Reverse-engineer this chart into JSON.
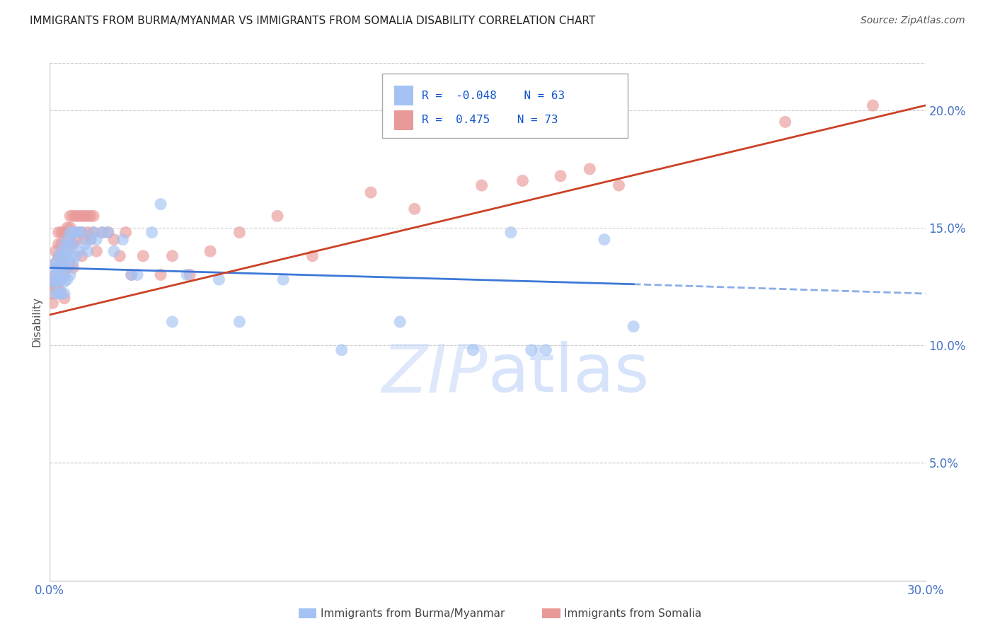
{
  "title": "IMMIGRANTS FROM BURMA/MYANMAR VS IMMIGRANTS FROM SOMALIA DISABILITY CORRELATION CHART",
  "source": "Source: ZipAtlas.com",
  "ylabel": "Disability",
  "xlim": [
    0.0,
    0.3
  ],
  "ylim": [
    0.0,
    0.22
  ],
  "yticks": [
    0.05,
    0.1,
    0.15,
    0.2
  ],
  "ytick_labels": [
    "5.0%",
    "10.0%",
    "15.0%",
    "20.0%"
  ],
  "xticks": [
    0.0,
    0.05,
    0.1,
    0.15,
    0.2,
    0.25,
    0.3
  ],
  "xtick_labels": [
    "0.0%",
    "",
    "",
    "",
    "",
    "",
    "30.0%"
  ],
  "blue_color": "#a4c2f4",
  "pink_color": "#ea9999",
  "blue_line_color": "#3c78d8",
  "pink_line_color": "#cc4125",
  "blue_R": -0.048,
  "blue_N": 63,
  "pink_R": 0.475,
  "pink_N": 73,
  "legend_blue_label": "Immigrants from Burma/Myanmar",
  "legend_pink_label": "Immigrants from Somalia",
  "watermark_zip": "ZIP",
  "watermark_atlas": "atlas",
  "background_color": "#ffffff",
  "blue_line_x0": 0.0,
  "blue_line_y0": 0.133,
  "blue_line_x1": 0.2,
  "blue_line_y1": 0.126,
  "blue_line_dash_x1": 0.3,
  "blue_line_dash_y1": 0.122,
  "pink_line_x0": 0.0,
  "pink_line_y0": 0.113,
  "pink_line_x1": 0.3,
  "pink_line_y1": 0.202,
  "blue_x": [
    0.001,
    0.001,
    0.002,
    0.002,
    0.002,
    0.002,
    0.003,
    0.003,
    0.003,
    0.003,
    0.003,
    0.004,
    0.004,
    0.004,
    0.004,
    0.004,
    0.005,
    0.005,
    0.005,
    0.005,
    0.005,
    0.006,
    0.006,
    0.006,
    0.006,
    0.007,
    0.007,
    0.007,
    0.007,
    0.008,
    0.008,
    0.008,
    0.009,
    0.009,
    0.01,
    0.01,
    0.011,
    0.012,
    0.013,
    0.014,
    0.015,
    0.016,
    0.018,
    0.02,
    0.022,
    0.025,
    0.028,
    0.03,
    0.035,
    0.038,
    0.042,
    0.047,
    0.058,
    0.065,
    0.08,
    0.1,
    0.12,
    0.145,
    0.158,
    0.165,
    0.17,
    0.19,
    0.2
  ],
  "blue_y": [
    0.133,
    0.127,
    0.135,
    0.13,
    0.127,
    0.122,
    0.138,
    0.133,
    0.13,
    0.127,
    0.122,
    0.14,
    0.135,
    0.132,
    0.128,
    0.122,
    0.143,
    0.138,
    0.133,
    0.127,
    0.122,
    0.145,
    0.14,
    0.135,
    0.128,
    0.148,
    0.143,
    0.138,
    0.13,
    0.148,
    0.143,
    0.135,
    0.148,
    0.138,
    0.148,
    0.14,
    0.148,
    0.143,
    0.14,
    0.145,
    0.148,
    0.145,
    0.148,
    0.148,
    0.14,
    0.145,
    0.13,
    0.13,
    0.148,
    0.16,
    0.11,
    0.13,
    0.128,
    0.11,
    0.128,
    0.098,
    0.11,
    0.098,
    0.148,
    0.098,
    0.098,
    0.145,
    0.108
  ],
  "pink_x": [
    0.001,
    0.001,
    0.001,
    0.002,
    0.002,
    0.002,
    0.002,
    0.003,
    0.003,
    0.003,
    0.003,
    0.003,
    0.004,
    0.004,
    0.004,
    0.004,
    0.004,
    0.005,
    0.005,
    0.005,
    0.005,
    0.005,
    0.006,
    0.006,
    0.006,
    0.006,
    0.007,
    0.007,
    0.007,
    0.007,
    0.008,
    0.008,
    0.008,
    0.008,
    0.009,
    0.009,
    0.01,
    0.01,
    0.011,
    0.011,
    0.011,
    0.012,
    0.012,
    0.013,
    0.013,
    0.014,
    0.014,
    0.015,
    0.015,
    0.016,
    0.018,
    0.02,
    0.022,
    0.024,
    0.026,
    0.028,
    0.032,
    0.038,
    0.042,
    0.048,
    0.055,
    0.065,
    0.078,
    0.09,
    0.11,
    0.125,
    0.148,
    0.162,
    0.175,
    0.185,
    0.195,
    0.252,
    0.282
  ],
  "pink_y": [
    0.127,
    0.122,
    0.118,
    0.14,
    0.135,
    0.13,
    0.125,
    0.148,
    0.143,
    0.138,
    0.133,
    0.125,
    0.148,
    0.143,
    0.138,
    0.133,
    0.122,
    0.148,
    0.143,
    0.138,
    0.13,
    0.12,
    0.15,
    0.145,
    0.14,
    0.133,
    0.155,
    0.15,
    0.143,
    0.135,
    0.155,
    0.148,
    0.143,
    0.133,
    0.155,
    0.145,
    0.155,
    0.148,
    0.155,
    0.148,
    0.138,
    0.155,
    0.145,
    0.155,
    0.148,
    0.155,
    0.145,
    0.155,
    0.148,
    0.14,
    0.148,
    0.148,
    0.145,
    0.138,
    0.148,
    0.13,
    0.138,
    0.13,
    0.138,
    0.13,
    0.14,
    0.148,
    0.155,
    0.138,
    0.165,
    0.158,
    0.168,
    0.17,
    0.172,
    0.175,
    0.168,
    0.195,
    0.202
  ]
}
